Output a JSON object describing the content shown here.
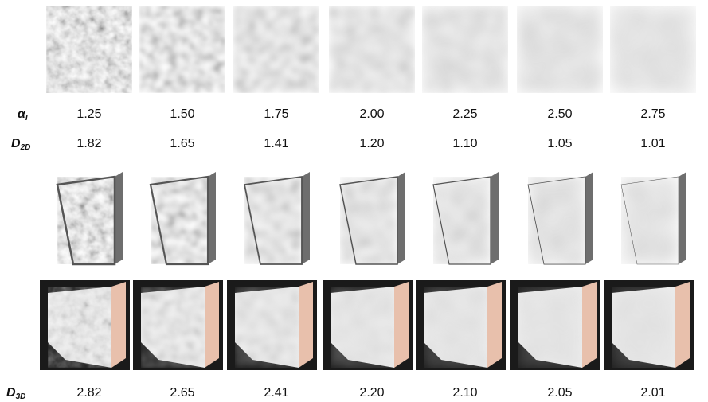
{
  "rows": [
    {
      "label": {
        "symbol": "α",
        "subscript": "I"
      },
      "values": [
        "1.25",
        "1.50",
        "1.75",
        "2.00",
        "2.25",
        "2.50",
        "2.75"
      ]
    },
    {
      "label": {
        "symbol": "D",
        "subscript": "2D"
      },
      "values": [
        "1.82",
        "1.65",
        "1.41",
        "1.20",
        "1.10",
        "1.05",
        "1.01"
      ]
    },
    {
      "label": {
        "symbol": "D",
        "subscript": "3D"
      },
      "values": [
        "2.82",
        "2.65",
        "2.41",
        "2.20",
        "2.10",
        "2.05",
        "2.01"
      ]
    }
  ]
}
